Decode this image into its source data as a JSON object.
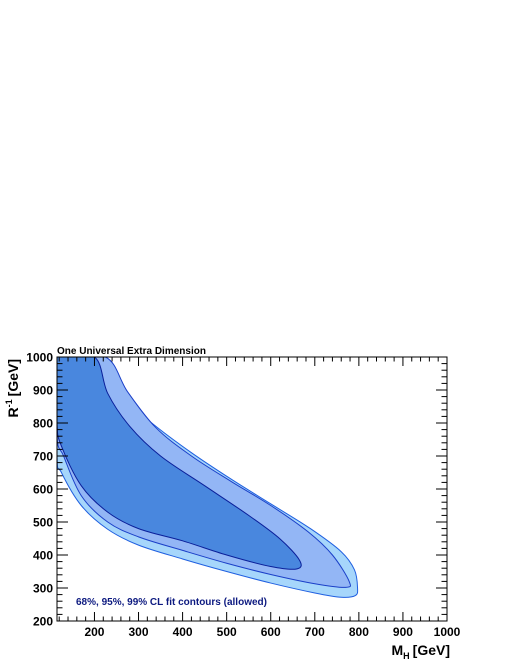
{
  "chart_data": {
    "type": "contour",
    "title": "One Universal Extra Dimension",
    "xlabel": {
      "main": "M",
      "sub": "H",
      "unit": "[GeV]"
    },
    "ylabel": {
      "main": "R",
      "sup": "-1",
      "unit": "[GeV]"
    },
    "xlim": [
      115,
      1000
    ],
    "ylim": [
      200,
      1000
    ],
    "xticks": [
      200,
      300,
      400,
      500,
      600,
      700,
      800,
      900,
      1000
    ],
    "yticks": [
      200,
      300,
      400,
      500,
      600,
      700,
      800,
      900,
      1000
    ],
    "annotation": "68%, 95%, 99% CL fit contours (allowed)",
    "colors": {
      "cl99_fill": "#a6d6fb",
      "cl95_fill": "#93b6f5",
      "cl68_fill": "#4987de",
      "cl99_line": "#1f5fe0",
      "cl95_line": "#1a3fc8",
      "cl68_line": "#0a1f9a"
    },
    "series": [
      {
        "name": "99% CL",
        "points": [
          [
            115,
            1000
          ],
          [
            170,
            1000
          ],
          [
            250,
            895
          ],
          [
            330,
            800
          ],
          [
            420,
            710
          ],
          [
            510,
            630
          ],
          [
            600,
            555
          ],
          [
            690,
            480
          ],
          [
            760,
            410
          ],
          [
            790,
            355
          ],
          [
            797,
            300
          ],
          [
            792,
            277
          ],
          [
            760,
            272
          ],
          [
            700,
            285
          ],
          [
            600,
            315
          ],
          [
            500,
            350
          ],
          [
            400,
            388
          ],
          [
            300,
            430
          ],
          [
            230,
            478
          ],
          [
            170,
            550
          ],
          [
            125,
            650
          ],
          [
            115,
            700
          ]
        ]
      },
      {
        "name": "95% CL",
        "points": [
          [
            115,
            1000
          ],
          [
            225,
            1000
          ],
          [
            275,
            895
          ],
          [
            340,
            785
          ],
          [
            420,
            700
          ],
          [
            510,
            623
          ],
          [
            600,
            550
          ],
          [
            685,
            470
          ],
          [
            740,
            400
          ],
          [
            778,
            320
          ],
          [
            770,
            302
          ],
          [
            700,
            313
          ],
          [
            600,
            341
          ],
          [
            500,
            375
          ],
          [
            400,
            414
          ],
          [
            300,
            455
          ],
          [
            230,
            500
          ],
          [
            170,
            580
          ],
          [
            130,
            700
          ],
          [
            115,
            760
          ]
        ]
      },
      {
        "name": "68% CL",
        "points": [
          [
            115,
            1000
          ],
          [
            200,
            1000
          ],
          [
            230,
            890
          ],
          [
            280,
            790
          ],
          [
            350,
            700
          ],
          [
            450,
            610
          ],
          [
            550,
            520
          ],
          [
            620,
            450
          ],
          [
            665,
            385
          ],
          [
            660,
            358
          ],
          [
            600,
            365
          ],
          [
            500,
            400
          ],
          [
            400,
            443
          ],
          [
            300,
            480
          ],
          [
            230,
            530
          ],
          [
            170,
            610
          ],
          [
            125,
            730
          ],
          [
            115,
            800
          ]
        ]
      }
    ]
  }
}
